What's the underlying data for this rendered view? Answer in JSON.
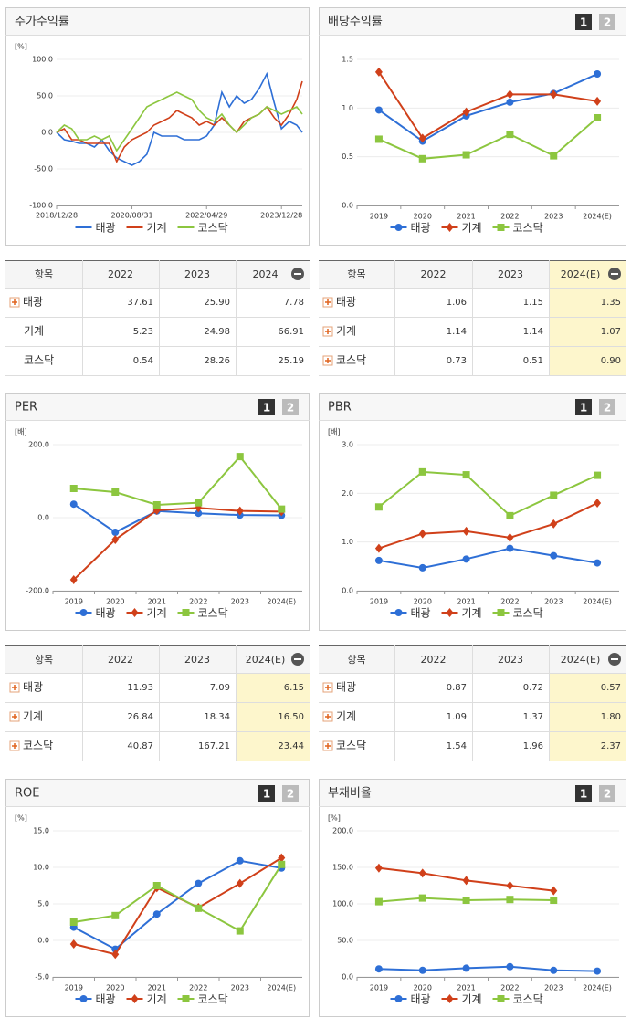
{
  "chart_data": [
    {
      "type": "line",
      "title": "주가수익률",
      "y_unit": "[%]",
      "markers": false,
      "x": [
        "2018/12/28",
        "2019/02/28",
        "2019/04/30",
        "2019/06/28",
        "2019/08/30",
        "2019/10/31",
        "2019/12/30",
        "2020/02/28",
        "2020/04/29",
        "2020/06/30",
        "2020/08/31",
        "2020/10/30",
        "2020/12/30",
        "2021/02/26",
        "2021/04/30",
        "2021/06/30",
        "2021/08/31",
        "2021/10/29",
        "2021/12/30",
        "2022/02/28",
        "2022/04/29",
        "2022/06/30",
        "2022/08/31",
        "2022/10/31",
        "2022/12/29",
        "2023/02/28",
        "2023/04/28",
        "2023/06/30",
        "2023/08/31",
        "2023/10/31",
        "2023/12/28",
        "2024/02/29",
        "2024/04/30",
        "2024/06/14"
      ],
      "xlim": [
        "2018/12/28",
        "2024/06/14"
      ],
      "xticks": [
        "2018/12/28",
        "2020/08/31",
        "2022/04/29",
        "2023/12/28"
      ],
      "ylim": [
        -100,
        100
      ],
      "yticks": [
        {
          "value": -100,
          "label": "-100.0"
        },
        {
          "value": -50,
          "label": "-50.0"
        },
        {
          "value": 0,
          "label": "0.0"
        },
        {
          "value": 50,
          "label": "50.0"
        },
        {
          "value": 100,
          "label": "100.0"
        }
      ],
      "series": [
        {
          "name": "태광",
          "color": "#2e6fd6",
          "marker": "circle",
          "values": [
            0,
            -10,
            -12,
            -15,
            -15,
            -20,
            -10,
            -25,
            -35,
            -40,
            -45,
            -40,
            -30,
            0,
            -5,
            -5,
            -5,
            -10,
            -10,
            -10,
            -5,
            10,
            55,
            35,
            50,
            40,
            45,
            60,
            80,
            40,
            5,
            15,
            10,
            0
          ]
        },
        {
          "name": "기계",
          "color": "#d0401a",
          "marker": "diamond",
          "values": [
            0,
            5,
            -10,
            -10,
            -15,
            -15,
            -15,
            -15,
            -40,
            -20,
            -10,
            -5,
            0,
            10,
            15,
            20,
            30,
            25,
            20,
            10,
            15,
            10,
            20,
            10,
            0,
            15,
            20,
            25,
            35,
            20,
            10,
            25,
            45,
            70
          ]
        },
        {
          "name": "코스닥",
          "color": "#8cc63f",
          "marker": "square",
          "values": [
            0,
            10,
            5,
            -10,
            -10,
            -5,
            -10,
            -5,
            -25,
            -10,
            5,
            20,
            35,
            40,
            45,
            50,
            55,
            50,
            45,
            30,
            20,
            15,
            25,
            10,
            0,
            10,
            20,
            25,
            35,
            30,
            25,
            30,
            35,
            25
          ]
        }
      ]
    },
    {
      "type": "line",
      "title": "배당수익률",
      "tabs": true,
      "markers": true,
      "categories": [
        "2019",
        "2020",
        "2021",
        "2022",
        "2023",
        "2024(E)"
      ],
      "ylim": [
        0,
        1.5
      ],
      "yticks": [
        {
          "value": 0,
          "label": "0.0"
        },
        0.5,
        {
          "value": 1,
          "label": "1.0"
        },
        1.5
      ],
      "series": [
        {
          "name": "태광",
          "color": "#2e6fd6",
          "marker": "circle",
          "values": [
            0.98,
            0.66,
            0.92,
            1.06,
            1.15,
            1.35
          ]
        },
        {
          "name": "기계",
          "color": "#d0401a",
          "marker": "diamond",
          "values": [
            1.37,
            0.69,
            0.96,
            1.14,
            1.14,
            1.07
          ]
        },
        {
          "name": "코스닥",
          "color": "#8cc63f",
          "marker": "square",
          "values": [
            0.68,
            0.48,
            0.52,
            0.73,
            0.51,
            0.9
          ]
        }
      ]
    },
    {
      "type": "line",
      "title": "PER",
      "y_unit": "[배]",
      "tabs": true,
      "markers": true,
      "categories": [
        "2019",
        "2020",
        "2021",
        "2022",
        "2023",
        "2024(E)"
      ],
      "ylim": [
        -200,
        200
      ],
      "yticks": [
        {
          "value": -200,
          "label": "-200.0"
        },
        {
          "value": 0,
          "label": "0.0"
        },
        {
          "value": 200,
          "label": "200.0"
        }
      ],
      "series": [
        {
          "name": "태광",
          "color": "#2e6fd6",
          "marker": "circle",
          "values": [
            37,
            -40,
            18,
            11.93,
            7.09,
            6.15
          ]
        },
        {
          "name": "기계",
          "color": "#d0401a",
          "marker": "diamond",
          "values": [
            -170,
            -60,
            20,
            26.84,
            18.34,
            16.5
          ]
        },
        {
          "name": "코스닥",
          "color": "#8cc63f",
          "marker": "square",
          "values": [
            80,
            70,
            35,
            40.87,
            167.21,
            23.44
          ]
        }
      ]
    },
    {
      "type": "line",
      "title": "PBR",
      "y_unit": "[배]",
      "tabs": true,
      "markers": true,
      "categories": [
        "2019",
        "2020",
        "2021",
        "2022",
        "2023",
        "2024(E)"
      ],
      "ylim": [
        0,
        3
      ],
      "yticks": [
        {
          "value": 0,
          "label": "0.0"
        },
        {
          "value": 1,
          "label": "1.0"
        },
        {
          "value": 2,
          "label": "2.0"
        },
        {
          "value": 3,
          "label": "3.0"
        }
      ],
      "series": [
        {
          "name": "태광",
          "color": "#2e6fd6",
          "marker": "circle",
          "values": [
            0.62,
            0.47,
            0.65,
            0.87,
            0.72,
            0.57
          ]
        },
        {
          "name": "기계",
          "color": "#d0401a",
          "marker": "diamond",
          "values": [
            0.87,
            1.17,
            1.22,
            1.09,
            1.37,
            1.8
          ]
        },
        {
          "name": "코스닥",
          "color": "#8cc63f",
          "marker": "square",
          "values": [
            1.72,
            2.44,
            2.38,
            1.54,
            1.96,
            2.37
          ]
        }
      ]
    },
    {
      "type": "line",
      "title": "ROE",
      "y_unit": "[%]",
      "tabs": true,
      "markers": true,
      "categories": [
        "2019",
        "2020",
        "2021",
        "2022",
        "2023",
        "2024(E)"
      ],
      "ylim": [
        -5,
        15
      ],
      "yticks": [
        {
          "value": -5,
          "label": "-5.0"
        },
        {
          "value": 0,
          "label": "0.0"
        },
        {
          "value": 5,
          "label": "5.0"
        },
        {
          "value": 10,
          "label": "10.0"
        },
        {
          "value": 15,
          "label": "15.0"
        }
      ],
      "series": [
        {
          "name": "태광",
          "color": "#2e6fd6",
          "marker": "circle",
          "values": [
            1.8,
            -1.2,
            3.6,
            7.8,
            10.9,
            9.9
          ]
        },
        {
          "name": "기계",
          "color": "#d0401a",
          "marker": "diamond",
          "values": [
            -0.5,
            -1.9,
            7.2,
            4.5,
            7.8,
            11.3
          ]
        },
        {
          "name": "코스닥",
          "color": "#8cc63f",
          "marker": "square",
          "values": [
            2.5,
            3.4,
            7.5,
            4.4,
            1.3,
            10.4
          ]
        }
      ]
    },
    {
      "type": "line",
      "title": "부채비율",
      "y_unit": "[%]",
      "tabs": true,
      "markers": true,
      "categories": [
        "2019",
        "2020",
        "2021",
        "2022",
        "2023",
        "2024(E)"
      ],
      "ylim": [
        0,
        200
      ],
      "yticks": [
        {
          "value": 0,
          "label": "0.0"
        },
        {
          "value": 50,
          "label": "50.0"
        },
        {
          "value": 100,
          "label": "100.0"
        },
        {
          "value": 150,
          "label": "150.0"
        },
        {
          "value": 200,
          "label": "200.0"
        }
      ],
      "series": [
        {
          "name": "태광",
          "color": "#2e6fd6",
          "marker": "circle",
          "values": [
            11,
            9,
            12,
            14,
            9,
            8
          ]
        },
        {
          "name": "기계",
          "color": "#d0401a",
          "marker": "diamond",
          "values": [
            149,
            142,
            132,
            125,
            118,
            null
          ]
        },
        {
          "name": "코스닥",
          "color": "#8cc63f",
          "marker": "square",
          "values": [
            103,
            108,
            105,
            106,
            105,
            null
          ]
        }
      ]
    }
  ],
  "tabs": [
    "1",
    "2"
  ],
  "tables": [
    {
      "header": [
        "항목",
        "2022",
        "2023",
        "2024"
      ],
      "rows": [
        [
          "태광",
          "37.61",
          "25.90",
          "7.78"
        ],
        [
          "기계",
          "5.23",
          "24.98",
          "66.91"
        ],
        [
          "코스닥",
          "0.54",
          "28.26",
          "25.19"
        ]
      ]
    },
    {
      "header": [
        "항목",
        "2022",
        "2023",
        "2024(E)"
      ],
      "rows": [
        [
          "태광",
          "1.06",
          "1.15",
          "1.35"
        ],
        [
          "기계",
          "1.14",
          "1.14",
          "1.07"
        ],
        [
          "코스닥",
          "0.73",
          "0.51",
          "0.90"
        ]
      ]
    },
    {
      "header": [
        "항목",
        "2022",
        "2023",
        "2024(E)"
      ],
      "rows": [
        [
          "태광",
          "11.93",
          "7.09",
          "6.15"
        ],
        [
          "기계",
          "26.84",
          "18.34",
          "16.50"
        ],
        [
          "코스닥",
          "40.87",
          "167.21",
          "23.44"
        ]
      ]
    },
    {
      "header": [
        "항목",
        "2022",
        "2023",
        "2024(E)"
      ],
      "rows": [
        [
          "태광",
          "0.87",
          "0.72",
          "0.57"
        ],
        [
          "기계",
          "1.09",
          "1.37",
          "1.80"
        ],
        [
          "코스닥",
          "1.54",
          "1.96",
          "2.37"
        ]
      ]
    }
  ]
}
